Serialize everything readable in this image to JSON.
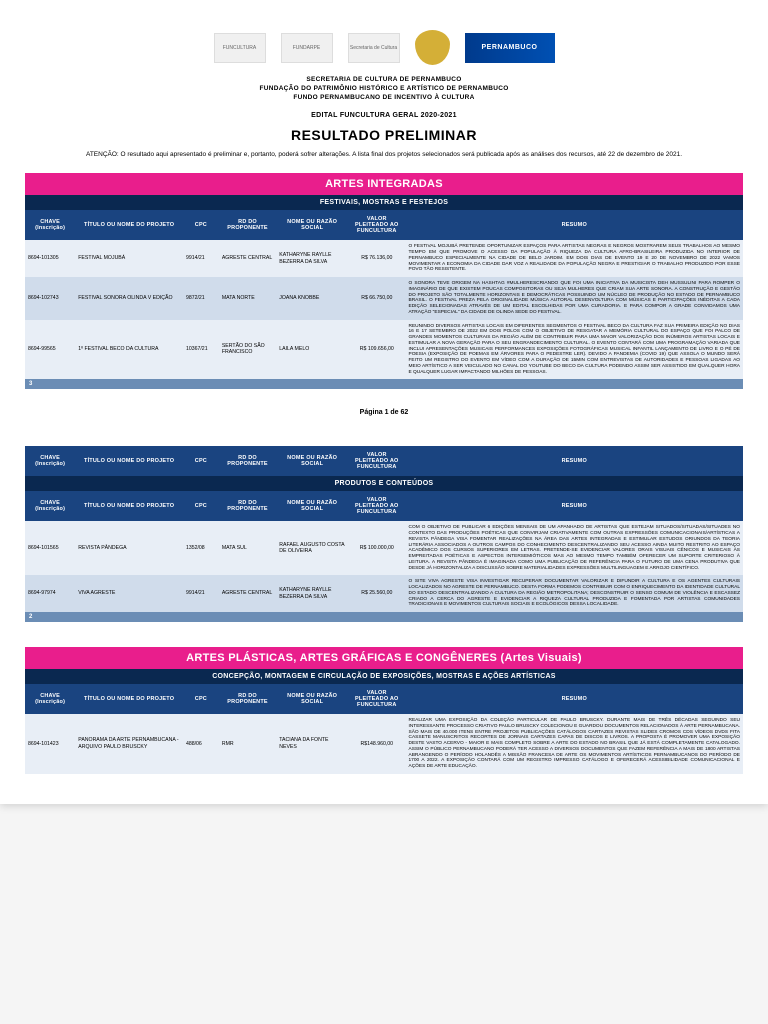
{
  "header": {
    "org1": "SECRETARIA DE CULTURA DE PERNAMBUCO",
    "org2": "FUNDAÇÃO DO PATRIMÔNIO HISTÓRICO E ARTÍSTICO DE PERNAMBUCO",
    "org3": "FUNDO PERNAMBUCANO DE INCENTIVO À CULTURA",
    "edital": "EDITAL FUNCULTURA GERAL 2020-2021",
    "resultado": "RESULTADO PRELIMINAR",
    "atencao": "ATENÇÃO: O resultado aqui apresentado é preliminar e, portanto, poderá sofrer alterações. A lista final dos projetos selecionados será publicada após as análises dos recursos, até 22 de dezembro de 2021.",
    "logo_pe": "PERNAMBUCO",
    "logo_fundarpe": "FUNDARPE",
    "logo_funcultura": "FUNCULTURA",
    "logo_sec": "Secretaria de Cultura"
  },
  "columns": {
    "chave": "CHAVE (Inscrição)",
    "titulo": "TÍTULO OU NOME DO PROJETO",
    "cpc": "CPC",
    "rd": "RD DO PROPONENTE",
    "nome": "NOME OU RAZÃO SOCIAL",
    "valor": "VALOR PLEITEADO AO FUNCULTURA",
    "resumo": "RESUMO"
  },
  "section1": {
    "title": "ARTES INTEGRADAS",
    "sub1": "FESTIVAIS, MOSTRAS E FESTEJOS",
    "sub2": "PRODUTOS E CONTEÚDOS",
    "count1": "3",
    "count2": "2",
    "rows1": [
      {
        "chave": "8694-101305",
        "titulo": "FESTIVAL MOJUBÁ",
        "cpc": "9914/21",
        "rd": "AGRESTE CENTRAL",
        "nome": "KATHARYNE RAYLLE BEZERRA DA SILVA",
        "valor": "R$ 76.136,00",
        "resumo": "O FESTIVAL MOJUBÁ PRETENDE OPORTUNIZAR ESPAÇOS PARA ARTISTAS NEGRAS E NEGROS MOSTRAREM SEUS TRABALHOS AO MESMO TEMPO EM QUE PROMOVE O ACESSO DA POPULAÇÃO À RIQUEZA DA CULTURA AFRO-BRASILEIRA PRODUZIDA NO INTERIOR DE PERNAMBUCO ESPECIALMENTE NA CIDADE DE BELO JARDIM. EM DOIS DIAS DE EVENTO 19 E 20 DE NOVEMBRO DE 2022 VAMOS MOVIMENTAR A ECONOMIA DA CIDADE DAR VOZ A REALIDADE DA POPULAÇÃO NEGRA E PRESTIGIAR O TRABALHO PRODUZIDO POR ESSE POVO TÃO RESISTENTE."
      },
      {
        "chave": "8694-102743",
        "titulo": "FESTIVAL SONORA OLINDA V EDIÇÃO",
        "cpc": "9872/21",
        "rd": "MATA NORTE",
        "nome": "JOANA KNOBBE",
        "valor": "R$ 66.750,00",
        "resumo": "O SONORA TEVE ORIGEM NA HASHTAG #MULHERESCRIANDO QUE FOI UMA INICIATIVA DA MUSICISTA DEH MUSSULINI PARA ROMPER O IMAGINÁRIO DE QUE EXISTEM POUCAS COMPOSITORAS OU SEJA MULHERES QUE CRIAM SUA ARTE SONORA. A CONSTRUÇÃO E GESTÃO DO PROJETO SÃO TOTALMENTE HORIZONTAIS E DEMOCRÁTICAS POSSUINDO UM NÚCLEO DE PRODUÇÃO NO ESTADO DE PERNAMBUCO BRASIL. O FESTIVAL PREZA PELA ORIGINALIDADE MÚSICA AUTORAL DESENVOLTURA COM MÚSICAS E PARTICIPAÇÕES INÉDITAS A CADA EDIÇÃO SELECIONADAS ATRAVÉS DE UM EDITAL ESCOLHIDAS POR UMA CURADORIA. E PARA COMPOR A GRADE CONVIDAMOS UMA ATRAÇÃO \"ESPECIAL\" DA CIDADE DE OLINDA SEDE DO FESTIVAL."
      },
      {
        "chave": "8694-99565",
        "titulo": "1º FESTIVAL BECO DA CULTURA",
        "cpc": "10367/21",
        "rd": "SERTÃO DO SÃO FRANCISCO",
        "nome": "LAILA MELO",
        "valor": "R$ 109.656,00",
        "resumo": "REUNINDO DIVERSOS ARTISTAS LOCAIS EM DIFERENTES SEGMENTOS O FESTIVAL BECO DA CULTURA FAZ SUA PRIMEIRA EDIÇÃO NO DIAS 16 E 17 SETEMBRO DE 2022 EM DOIS POLOS COM O OBJETIVO DE RESGATAR A MEMÓRIA CULTURAL DO ESPAÇO QUE FOI PALCO DE GRANDES MOMENTOS CULTURAIS DA REGIÃO ALÉM DE CONTRIBUIR PARA UMA MAIOR VALORIZAÇÃO DOS INÚMEROS ARTISTAS LOCAIS E ESTIMULAR A NOVA GERAÇÃO PARA O SEU ENGRANDECIMENTO CULTURAL. O EVENTO CONTARÁ COM UMA PROGRAMAÇÃO VARIADA QUE INCLUI APRESENTAÇÕES MUSICAIS PERFORMANCES EXPOSIÇÕES FOTOGRÁFICAS MUSICAL INFANTIL LANÇAMENTO DE LIVRO E O PÉ DE POESIA (EXPOSIÇÃO DE POEMAS EM ÁRVORES PARA O PEDESTRE LER). DEVIDO A PANDEMIA (COVID 19) QUE ASSOLA O MUNDO SERÁ FEITO UM REGISTRO DO EVENTO EM VÍDEO COM A DURAÇÃO DE 15MIN COM ENTREVISTAS DE AUTORIDADES E PESSOAS LIGADAS AO MEIO ARTÍSTICO A SER VEICULADO NO CANAL DO YOUTUBE DO BECO DA CULTURA PODENDO ASSIM SER ASSISTIDO EM QUALQUER HORA E QUALQUER LUGAR IMPACTANDO MILHÕES DE PESSOAS."
      }
    ],
    "rows2": [
      {
        "chave": "8694-101565",
        "titulo": "REVISTA PÂNDEGA",
        "cpc": "1352/08",
        "rd": "MATA SUL",
        "nome": "RAFAEL AUGUSTO COSTA DE OLIVEIRA",
        "valor": "R$ 100.000,00",
        "resumo": "COM O OBJETIVO DE PUBLICAR 6 EDIÇÕES MENSAIS DE UM APANHADO DE ARTISTAS QUE ESTEJAM SITUADOS/SITUADAS/SITUADES NO CONTEXTO DAS PRODUÇÕES POÉTICAS QUE CONVIRJAM CRIATIVAMENTE COM OUTRAS EXPRESSÕES COMUNICACIONAIS/ARTÍSTICAS A REVISTA PÂNDEGA VISA FOMENTAR REALIZAÇÕES NA ÁREA DAS ARTES INTEGRADAS E ESTIMULAR ESTUDOS ORIUNDOS DA TEORIA LITERÁRIA ASSOCIADOS A OUTROS CAMPOS DO CONHECIMENTO DESCENTRALIZANDO SEU ACESSO AINDA MUITO RESTRITO AO ESPAÇO ACADÊMICO DOS CURSOS SUPERIORES EM LETRAS. PRETENDE-SE EVIDENCIAR VALORES ORAIS VISUAIS CÊNICOS E MUSICAIS ÀS EMPREITADAS POÉTICAS E ASPECTOS INTERSEMIÓTICOS MAS AO MESMO TEMPO TAMBÉM OFERECER UM SUPORTE CRITERIOSO À LEITURA. A REVISTA PÂNDEGA É IMAGINADA COMO UMA PUBLICAÇÃO DE REFERÊNCIA PARA O FUTURO DE UMA CENA PRODUTIVA QUE DESDE JÁ HORIZONTALIZA A DISCUSSÃO SOBRE MATERIALIDADES EXPRESSÕES MULTILINGUAGEM E ARROJO CIENTÍFICO."
      },
      {
        "chave": "8694-97974",
        "titulo": "VIVA AGRESTE",
        "cpc": "9914/21",
        "rd": "AGRESTE CENTRAL",
        "nome": "KATHARYNE RAYLLE BEZERRA DA SILVA",
        "valor": "R$ 25.560,00",
        "resumo": "O SITE VIVA AGRESTE VISA INVESTIGAR RECUPERAR DOCUMENTAR VALORIZAR E DIFUNDIR A CULTURA E OS AGENTES CULTURAIS LOCALIZADOS NO AGRESTE DE PERNAMBUCO. DESTA FORMA PODEMOS CONTRIBUIR COM O ENRIQUECIMENTO DA IDENTIDADE CULTURAL DO ESTADO DESCENTRALIZANDO A CULTURA DA REGIÃO METROPOLITANA; DESCONSTRUIR O SENSO COMUM DE VIOLÊNCIA E ESCASSEZ CRIADO A CERCA DO AGRESTE E EVIDENCIAR A RIQUEZA CULTURAL PRODUZIDA E FOMENTADA POR ARTISTAS COMUNIDADES TRADICIONAIS E MOVIMENTOS CULTURAIS SOCIAIS E ECOLÓGICOS DESSA LOCALIDADE."
      }
    ]
  },
  "section2": {
    "title": "ARTES PLÁSTICAS, ARTES GRÁFICAS E CONGÊNERES (Artes Visuais)",
    "sub1": "CONCEPÇÃO, MONTAGEM E CIRCULAÇÃO DE EXPOSIÇÕES, MOSTRAS E AÇÕES ARTÍSTICAS",
    "rows": [
      {
        "chave": "8694-101423",
        "titulo": "PANORAMA DA ARTE PERNAMBUCANA -ARQUIVO PAULO BRUSCKY",
        "cpc": "488/06",
        "rd": "RMR",
        "nome": "TACIANA DA FONTE NEVES",
        "valor": "R$148.960,00",
        "resumo": "REALIZAR UMA EXPOSIÇÃO DA COLEÇÃO PARTICULAR DE PAULO BRUSCKY. DURANTE MAIS DE TRÊS DÉCADAS SEGUINDO SEU INTERESSANTE PROCESSO CRIATIVO PAULO BRUSCKY COLECIONOU E GUARDOU DOCUMENTOS RELACIONADOS À ARTE PERNAMBUCANA. SÃO MAIS DE 40.000 ITENS ENTRE PROJETOS PUBLICAÇÕES CATÁLOGOS CARTAZES REVISTAS SLIDES CROMOS CDS VÍDEOS DVDS FITA CASSETE MANUSCRITOS RECORTES DE JORNAIS CARTAZES CAPAS DE DISCOS E LIVROS. A PROPOSTA É PROMOVER UMA EXPOSIÇÃO DESTE VASTO ACERVO - MAIOR E MAIS COMPLETO SOBRE A ARTE DO ESTADO NO BRASIL QUE JÁ ESTÁ COMPLETAMENTE CATALOGADO. ASSIM O PÚBLICO PERNAMBUCANO PODERÁ TER ACESSO A DIVERSOS DOCUMENTOS QUE FAZEM REFERÊNCIA A MAIS DE 1800 ARTISTAS ABRANGENDO O PERÍODO HOLANDÊS A MISSÃO FRANCESA DE ARTE OS MOVIMENTOS ARTÍSTICOS PERNAMBUCANOS DO PERÍODO DE 1700 A 2022. A EXPOSIÇÃO CONTARÁ COM UM REGISTRO IMPRESSO CATÁLOGO E OFERECERÁ ACESSIBILIDADE COMUNICACIONAL E AÇÕES DE ARTE EDUCAÇÃO."
      }
    ]
  },
  "pagina": "Página 1 de 62"
}
